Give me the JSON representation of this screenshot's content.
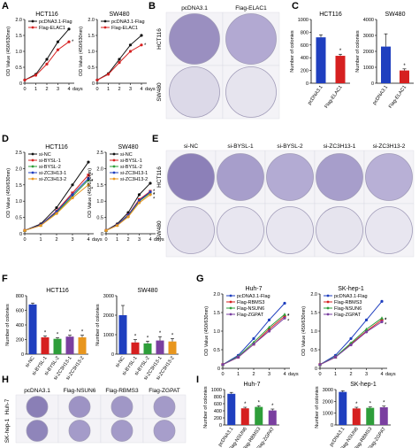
{
  "panel_letters": [
    "A",
    "B",
    "C",
    "D",
    "E",
    "F",
    "G",
    "H",
    "I"
  ],
  "well_labels": {
    "B_cols": [
      "pcDNA3.1",
      "Flag-ELAC1"
    ],
    "B_rows": [
      "HCT116",
      "SW480"
    ],
    "E_cols": [
      "si-NC",
      "si-BYSL-1",
      "si-BYSL-2",
      "si-ZC3H13-1",
      "si-ZC3H13-2"
    ],
    "E_rows": [
      "HCT116",
      "SW480"
    ],
    "H_cols": [
      "pcDNA3.1",
      "Flag-NSUN6",
      "Flag-RBMS3",
      "Flag-ZGPAT"
    ],
    "H_rows": [
      "Huh-7",
      "SK-hep-1"
    ]
  },
  "colors": {
    "black": "#111111",
    "red": "#d62020",
    "blue": "#1f3fbf",
    "green": "#2e9e3a",
    "orange": "#e8961e",
    "purple": "#7a3fa0",
    "stain": "#6e5a9e"
  },
  "chart_data": [
    {
      "id": "A1",
      "type": "line",
      "title": "HCT116",
      "ylabel": "OD Value (450/630nm)",
      "xlabel": "days",
      "x": [
        0,
        1,
        2,
        3,
        4
      ],
      "ylim": [
        0,
        2
      ],
      "yticks": [
        0,
        0.5,
        1.0,
        1.5,
        2.0
      ],
      "legend": "top-left",
      "series": [
        {
          "name": "pcDNA3.1-Flag",
          "values": [
            0.1,
            0.28,
            0.75,
            1.3,
            1.7
          ]
        },
        {
          "name": "Flag-ELAC1",
          "values": [
            0.1,
            0.25,
            0.6,
            1.05,
            1.3
          ]
        }
      ],
      "annotations": [
        "*"
      ]
    },
    {
      "id": "A2",
      "type": "line",
      "title": "SW480",
      "ylabel": "OD Value (450/630nm)",
      "xlabel": "days",
      "x": [
        0,
        1,
        2,
        3,
        4
      ],
      "ylim": [
        0,
        2
      ],
      "yticks": [
        0,
        0.5,
        1.0,
        1.5,
        2.0
      ],
      "legend": "top-left",
      "series": [
        {
          "name": "pcDNA3.1-Flag",
          "values": [
            0.1,
            0.3,
            0.75,
            1.2,
            1.5
          ]
        },
        {
          "name": "Flag-ELAC1",
          "values": [
            0.1,
            0.28,
            0.65,
            1.0,
            1.2
          ]
        }
      ],
      "annotations": [
        "*"
      ]
    },
    {
      "id": "C1",
      "type": "bar",
      "title": "HCT116",
      "ylabel": "Number of colonies",
      "categories": [
        "pcDNA3.1",
        "Flag-ELAC1"
      ],
      "values": [
        720,
        430
      ],
      "errors": [
        40,
        25
      ],
      "ylim": [
        0,
        1000
      ],
      "yticks": [
        0,
        200,
        400,
        600,
        800,
        1000
      ],
      "annotations": [
        "*"
      ]
    },
    {
      "id": "C2",
      "type": "bar",
      "title": "SW480",
      "ylabel": "Number of colonies",
      "categories": [
        "pcDNA3.1",
        "Flag-ELAC1"
      ],
      "values": [
        2300,
        800
      ],
      "errors": [
        800,
        100
      ],
      "ylim": [
        0,
        4000
      ],
      "yticks": [
        0,
        1000,
        2000,
        3000,
        4000
      ],
      "annotations": [
        "*"
      ]
    },
    {
      "id": "D1",
      "type": "line",
      "title": "HCT116",
      "ylabel": "OD Value (450/630nm)",
      "xlabel": "days",
      "x": [
        0,
        1,
        2,
        3,
        4
      ],
      "ylim": [
        0,
        2.5
      ],
      "yticks": [
        0,
        0.5,
        1.0,
        1.5,
        2.0,
        2.5
      ],
      "legend": "top-left",
      "series": [
        {
          "name": "si-NC",
          "values": [
            0.1,
            0.3,
            0.8,
            1.5,
            2.2
          ]
        },
        {
          "name": "si-BYSL-1",
          "values": [
            0.1,
            0.27,
            0.7,
            1.25,
            1.8
          ]
        },
        {
          "name": "si-BYSL-2",
          "values": [
            0.1,
            0.26,
            0.65,
            1.15,
            1.65
          ]
        },
        {
          "name": "si-ZC3H13-1",
          "values": [
            0.1,
            0.27,
            0.68,
            1.2,
            1.7
          ]
        },
        {
          "name": "si-ZC3H13-2",
          "values": [
            0.1,
            0.25,
            0.62,
            1.1,
            1.5
          ]
        }
      ],
      "annotations": [
        "*",
        "*",
        "*",
        "*"
      ]
    },
    {
      "id": "D2",
      "type": "line",
      "title": "SW480",
      "ylabel": "OD Value (450/630nm)",
      "xlabel": "days",
      "x": [
        0,
        1,
        2,
        3,
        4
      ],
      "ylim": [
        0,
        2.5
      ],
      "yticks": [
        0,
        0.5,
        1.0,
        1.5,
        2.0,
        2.5
      ],
      "legend": "top-left",
      "series": [
        {
          "name": "si-NC",
          "values": [
            0.1,
            0.3,
            0.65,
            1.2,
            1.55
          ]
        },
        {
          "name": "si-BYSL-1",
          "values": [
            0.1,
            0.27,
            0.58,
            1.05,
            1.3
          ]
        },
        {
          "name": "si-BYSL-2",
          "values": [
            0.1,
            0.26,
            0.55,
            1.0,
            1.25
          ]
        },
        {
          "name": "si-ZC3H13-1",
          "values": [
            0.1,
            0.27,
            0.57,
            1.02,
            1.28
          ]
        },
        {
          "name": "si-ZC3H13-2",
          "values": [
            0.1,
            0.25,
            0.52,
            0.95,
            1.2
          ]
        }
      ],
      "annotations": [
        "*",
        "*",
        "*",
        "*"
      ]
    },
    {
      "id": "F1",
      "type": "bar",
      "title": "HCT116",
      "ylabel": "Number of colonies",
      "categories": [
        "si-NC",
        "si-BYSL-1",
        "si-BYSL-2",
        "si-ZC3H13-1",
        "si-ZC3H13-2"
      ],
      "values": [
        680,
        230,
        210,
        240,
        230
      ],
      "errors": [
        20,
        20,
        15,
        20,
        30
      ],
      "ylim": [
        0,
        800
      ],
      "yticks": [
        0,
        200,
        400,
        600,
        800
      ],
      "annotations": [
        "*",
        "*",
        "*",
        "*"
      ]
    },
    {
      "id": "F2",
      "type": "bar",
      "title": "SW480",
      "ylabel": "Number of colonies",
      "categories": [
        "si-NC",
        "si-BYSL-1",
        "si-BYSL-2",
        "si-ZC3H13-1",
        "si-ZC3H13-2"
      ],
      "values": [
        2000,
        600,
        550,
        700,
        650
      ],
      "errors": [
        500,
        150,
        120,
        200,
        150
      ],
      "ylim": [
        0,
        3000
      ],
      "yticks": [
        0,
        1000,
        2000,
        3000
      ],
      "annotations": [
        "*",
        "*",
        "*",
        "*"
      ]
    },
    {
      "id": "G1",
      "type": "line",
      "title": "Huh-7",
      "ylabel": "OD Value (450/630nm)",
      "xlabel": "days",
      "x": [
        0,
        1,
        2,
        3,
        4
      ],
      "ylim": [
        0,
        2
      ],
      "yticks": [
        0,
        0.5,
        1.0,
        1.5,
        2.0
      ],
      "legend": "top-left",
      "series": [
        {
          "name": "pcDNA3.1-Flag",
          "values": [
            0.1,
            0.35,
            0.8,
            1.3,
            1.75
          ]
        },
        {
          "name": "Flag-RBMS3",
          "values": [
            0.1,
            0.3,
            0.65,
            1.05,
            1.4
          ]
        },
        {
          "name": "Flag-NSUN6",
          "values": [
            0.1,
            0.32,
            0.7,
            1.1,
            1.45
          ]
        },
        {
          "name": "Flag-ZGPAT",
          "values": [
            0.1,
            0.3,
            0.65,
            1.0,
            1.35
          ]
        }
      ],
      "annotations": [
        "*",
        "*",
        "*"
      ]
    },
    {
      "id": "G2",
      "type": "line",
      "title": "SK-hep-1",
      "ylabel": "OD Value (450/630nm)",
      "xlabel": "days",
      "x": [
        0,
        1,
        2,
        3,
        4
      ],
      "ylim": [
        0,
        2
      ],
      "yticks": [
        0,
        0.5,
        1.0,
        1.5,
        2.0
      ],
      "legend": "top-left",
      "series": [
        {
          "name": "pcDNA3.1-Flag",
          "values": [
            0.1,
            0.35,
            0.8,
            1.3,
            1.8
          ]
        },
        {
          "name": "Flag-RBMS3",
          "values": [
            0.1,
            0.3,
            0.65,
            1.0,
            1.3
          ]
        },
        {
          "name": "Flag-NSUN6",
          "values": [
            0.1,
            0.31,
            0.68,
            1.05,
            1.35
          ]
        },
        {
          "name": "Flag-ZGPAT",
          "values": [
            0.1,
            0.3,
            0.63,
            0.98,
            1.25
          ]
        }
      ],
      "annotations": [
        "*",
        "*",
        "*"
      ]
    },
    {
      "id": "I1",
      "type": "bar",
      "title": "Huh-7",
      "ylabel": "Number of colonies",
      "categories": [
        "pcDNA3.1",
        "Flag-NSUN6",
        "Flag-RBMS3",
        "Flag-ZGPAT"
      ],
      "values": [
        880,
        470,
        510,
        410
      ],
      "errors": [
        40,
        30,
        30,
        40
      ],
      "ylim": [
        0,
        1000
      ],
      "yticks": [
        0,
        200,
        400,
        600,
        800,
        1000
      ],
      "annotations": [
        "*",
        "*",
        "*"
      ]
    },
    {
      "id": "I2",
      "type": "bar",
      "title": "SK-hep-1",
      "ylabel": "Number of colonies",
      "categories": [
        "pcDNA3.1",
        "Flag-NSUN6",
        "Flag-RBMS3",
        "Flag-ZGPAT"
      ],
      "values": [
        2800,
        1400,
        1450,
        1500
      ],
      "errors": [
        100,
        100,
        80,
        100
      ],
      "ylim": [
        0,
        3000
      ],
      "yticks": [
        0,
        1000,
        2000,
        3000
      ],
      "annotations": [
        "*",
        "*",
        "*"
      ]
    }
  ]
}
